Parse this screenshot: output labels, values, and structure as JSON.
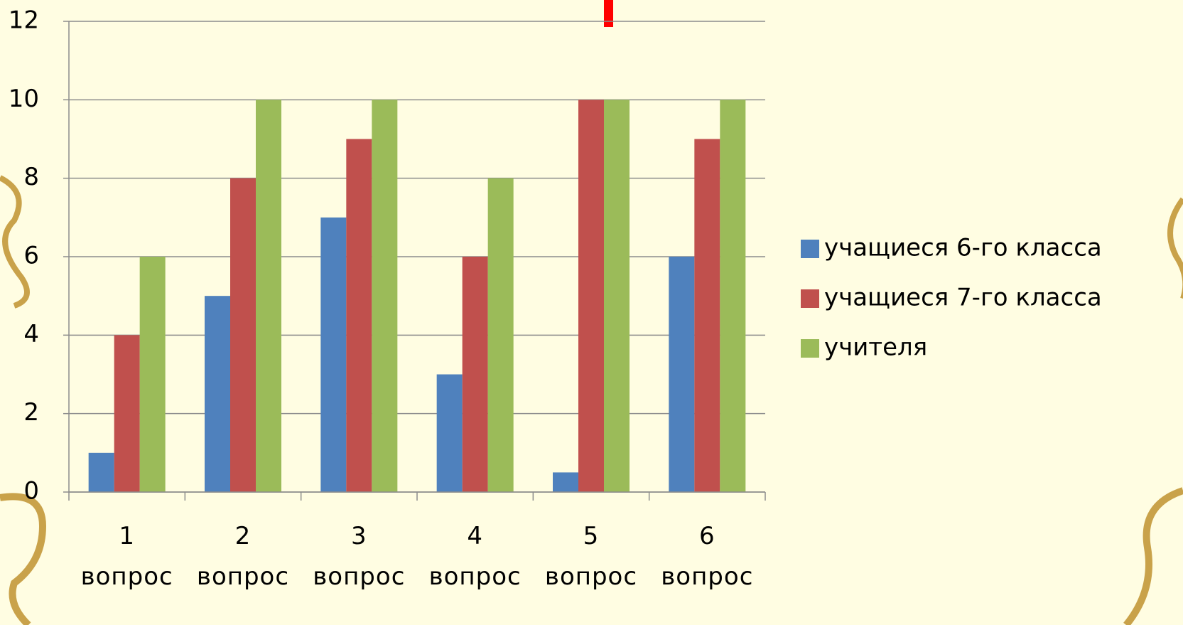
{
  "chart_data": {
    "type": "bar",
    "categories": [
      "1 вопрос",
      "2 вопрос",
      "3 вопрос",
      "4 вопрос",
      "5 вопрос",
      "6 вопрос"
    ],
    "series": [
      {
        "name": "учащиеся 6-го класса",
        "color": "#4f81bd",
        "values": [
          1,
          5,
          7,
          3,
          0.5,
          6
        ]
      },
      {
        "name": "учащиеся 7-го класса",
        "color": "#c0504d",
        "values": [
          4,
          8,
          9,
          6,
          10,
          9
        ]
      },
      {
        "name": "учителя",
        "color": "#9bbb59",
        "values": [
          6,
          10,
          10,
          8,
          10,
          10
        ]
      }
    ],
    "ylim": [
      0,
      12
    ],
    "yticks": [
      0,
      2,
      4,
      6,
      8,
      10,
      12
    ],
    "grid": true,
    "legend": "right"
  }
}
